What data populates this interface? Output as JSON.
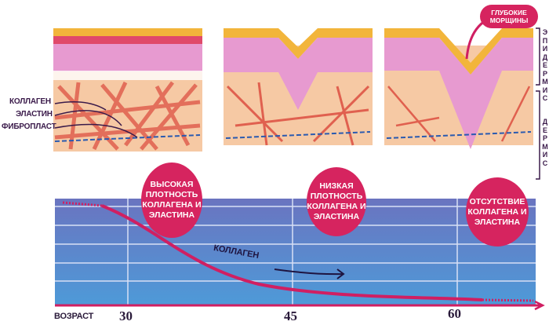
{
  "labels": {
    "collagen": "КОЛЛАГЕН",
    "elastin": "ЭЛАСТИН",
    "fibroblast": "ФИБРОПЛАСТ",
    "deep_wrinkles": "ГЛУБОКИЕ МОРЩИНЫ",
    "epidermis": "ЭПИДЕРМИС",
    "dermis": "ДЕРМИС"
  },
  "stages": [
    {
      "label": "ВЫСОКАЯ\nПЛОТНОСТЬ\nКОЛЛАГЕНА И\nЭЛАСТИНА"
    },
    {
      "label": "НИЗКАЯ\nПЛОТНОСТЬ\nКОЛЛАГЕНА И\nЭЛАСТИНА"
    },
    {
      "label": "ОТСУТСТВИЕ\nКОЛЛАГЕНА И\nЭЛАСТИНА"
    }
  ],
  "chart": {
    "curve_label": "КОЛЛАГЕН",
    "x_axis_label": "ВОЗРАСТ",
    "ticks": [
      "30",
      "45",
      "60"
    ]
  },
  "colors": {
    "curve": "#d01f62",
    "bubble": "#d6245f",
    "chart_top": "#6a74c0",
    "chart_bottom": "#4e9ad8",
    "dermis": "#f6c9a4",
    "epidermis": "#e79ad0",
    "stratum": "#f2b53b"
  }
}
